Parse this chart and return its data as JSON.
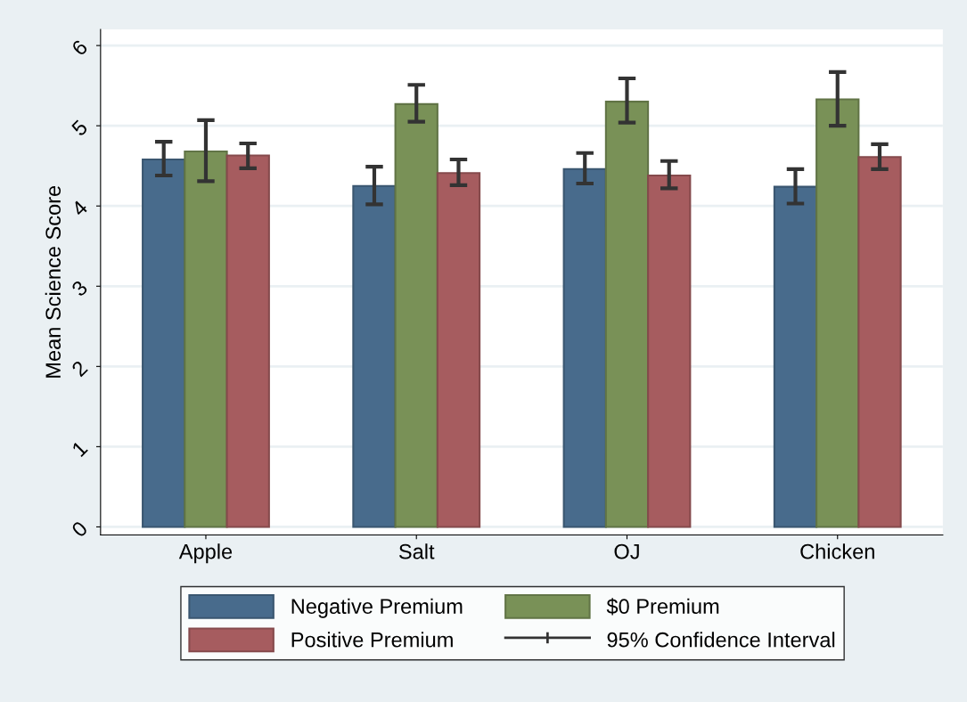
{
  "chart_data": {
    "type": "bar",
    "ylabel": "Mean Science Score",
    "categories": [
      "Apple",
      "Salt",
      "OJ",
      "Chicken"
    ],
    "series": [
      {
        "name": "Negative Premium",
        "color": "#486b8c",
        "values": [
          4.58,
          4.25,
          4.46,
          4.24
        ],
        "errors": [
          [
            4.38,
            4.8
          ],
          [
            4.02,
            4.49
          ],
          [
            4.28,
            4.66
          ],
          [
            4.03,
            4.46
          ]
        ]
      },
      {
        "name": "$0 Premium",
        "color": "#799157",
        "values": [
          4.68,
          5.27,
          5.3,
          5.33
        ],
        "errors": [
          [
            4.31,
            5.07
          ],
          [
            5.05,
            5.51
          ],
          [
            5.04,
            5.59
          ],
          [
            5.0,
            5.67
          ]
        ]
      },
      {
        "name": "Positive Premium",
        "color": "#a65c5f",
        "values": [
          4.63,
          4.41,
          4.38,
          4.61
        ],
        "errors": [
          [
            4.47,
            4.78
          ],
          [
            4.26,
            4.58
          ],
          [
            4.22,
            4.56
          ],
          [
            4.46,
            4.77
          ]
        ]
      }
    ],
    "annotations": [
      "95% Confidence Interval"
    ],
    "ylim": [
      -0.1,
      6.2
    ],
    "yticks": [
      0,
      1,
      2,
      3,
      4,
      5,
      6
    ],
    "grid": "y",
    "legend": "bottom"
  }
}
